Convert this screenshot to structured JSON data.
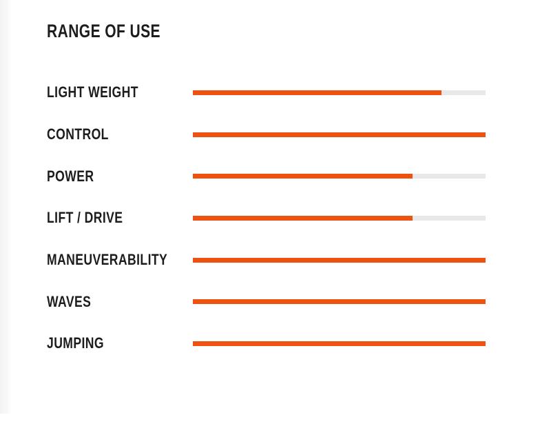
{
  "chart_data": {
    "type": "bar",
    "orientation": "horizontal",
    "title": "RANGE OF USE",
    "categories": [
      "LIGHT WEIGHT",
      "CONTROL",
      "POWER",
      "LIFT / DRIVE",
      "MANEUVERABILITY",
      "WAVES",
      "JUMPING"
    ],
    "values": [
      85,
      100,
      75,
      75,
      100,
      100,
      100
    ],
    "value_unit": "percent",
    "xlim": [
      0,
      100
    ],
    "grid": false,
    "legend": false,
    "data_labels": false
  },
  "colors": {
    "bar_fill": "#ee5211",
    "bar_track": "#e8e8e8",
    "text": "#1d1d1d",
    "background": "#ffffff"
  }
}
